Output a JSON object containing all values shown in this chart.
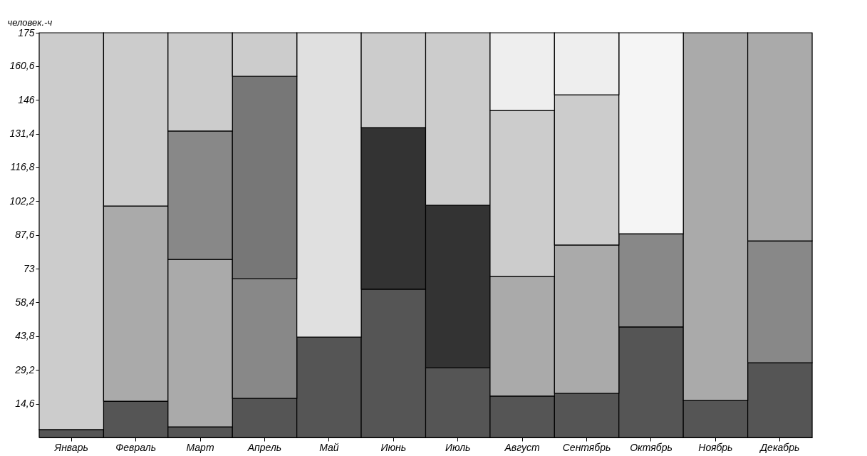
{
  "chart_data": {
    "type": "bar",
    "stacked": true,
    "ylabel": "человек.-ч",
    "categories": [
      "Январь",
      "Февраль",
      "Март",
      "Апрель",
      "Май",
      "Июнь",
      "Июль",
      "Август",
      "Сентябрь",
      "Октябрь",
      "Ноябрь",
      "Декабрь"
    ],
    "series": [
      {
        "colors": [
          "#555555",
          "#555555",
          "#555555",
          "#555555",
          "#555555",
          "#555555",
          "#555555",
          "#555555",
          "#555555",
          "#555555",
          "#555555",
          "#555555"
        ],
        "values": [
          3.4,
          15.7,
          4.6,
          16.9,
          43.4,
          64.1,
          30.2,
          17.9,
          19.1,
          47.8,
          16.0,
          32.3
        ]
      },
      {
        "colors": [
          "#cccccc",
          "#aaaaaa",
          "#aaaaaa",
          "#888888",
          "#e0e0e0",
          "#333333",
          "#333333",
          "#aaaaaa",
          "#aaaaaa",
          "#888888",
          "#aaaaaa",
          "#888888"
        ],
        "values": [
          171.6,
          84.4,
          72.4,
          51.8,
          131.6,
          69.9,
          70.2,
          51.7,
          64.1,
          40.3,
          159.0,
          52.7
        ]
      },
      {
        "colors": [
          "#cccccc",
          "#cccccc",
          "#888888",
          "#777777",
          "#e0e0e0",
          "#cccccc",
          "#cccccc",
          "#cccccc",
          "#cccccc",
          "#f5f5f5",
          "#aaaaaa",
          "#aaaaaa"
        ],
        "values": [
          null,
          74.9,
          55.5,
          87.5,
          null,
          41.0,
          74.6,
          71.8,
          65.0,
          86.9,
          null,
          90.0
        ]
      },
      {
        "colors": [
          "#cccccc",
          "#cccccc",
          "#cccccc",
          "#cccccc",
          "#cccccc",
          "#cccccc",
          "#cccccc",
          "#eeeeee",
          "#eeeeee",
          "#cccccc",
          "#cccccc",
          "#cccccc"
        ],
        "values": [
          null,
          null,
          42.5,
          18.8,
          null,
          null,
          null,
          33.6,
          26.8,
          null,
          null,
          null
        ]
      }
    ],
    "ylim": [
      0,
      175
    ],
    "yticks": [
      {
        "value": 14.6,
        "label": "14,6"
      },
      {
        "value": 29.2,
        "label": "29,2"
      },
      {
        "value": 43.8,
        "label": "43,8"
      },
      {
        "value": 58.4,
        "label": "58,4"
      },
      73,
      {
        "value": 87.6,
        "label": "87,6"
      },
      {
        "value": 102.2,
        "label": "102,2"
      },
      {
        "value": 116.8,
        "label": "116,8"
      },
      {
        "value": 131.4,
        "label": "131,4"
      },
      146,
      {
        "value": 160.6,
        "label": "160,6"
      },
      175
    ]
  }
}
